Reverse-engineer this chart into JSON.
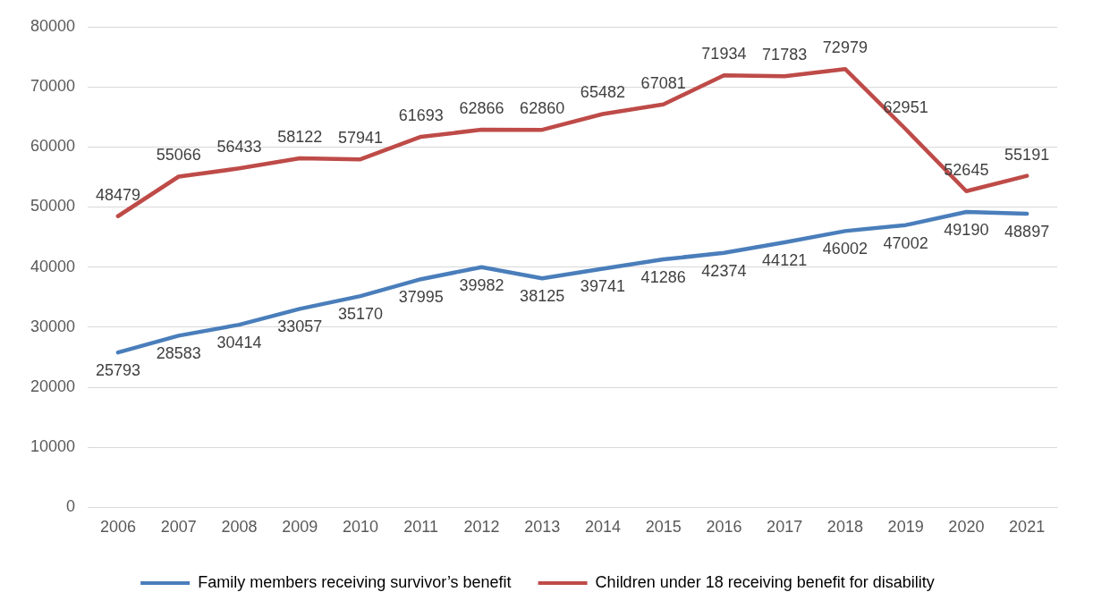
{
  "chart_data": {
    "type": "line",
    "categories": [
      "2006",
      "2007",
      "2008",
      "2009",
      "2010",
      "2011",
      "2012",
      "2013",
      "2014",
      "2015",
      "2016",
      "2017",
      "2018",
      "2019",
      "2020",
      "2021"
    ],
    "series": [
      {
        "name": "Family members receiving survivor’s benefit",
        "color": "#4a7ebb",
        "values": [
          25793,
          28583,
          30414,
          33057,
          35170,
          37995,
          39982,
          38125,
          39741,
          41286,
          42374,
          44121,
          46002,
          47002,
          49190,
          48897
        ]
      },
      {
        "name": "Children under 18 receiving benefit for disability",
        "color": "#be4b48",
        "values": [
          48479,
          55066,
          56433,
          58122,
          57941,
          61693,
          62866,
          62860,
          65482,
          67081,
          71934,
          71783,
          72979,
          62951,
          52645,
          55191
        ]
      }
    ],
    "ylim": [
      0,
      80000
    ],
    "yticks": [
      0,
      10000,
      20000,
      30000,
      40000,
      50000,
      60000,
      70000,
      80000
    ],
    "grid": "y",
    "legend": "bottom",
    "data_labels": true,
    "marker": "none",
    "line_style": "solid"
  }
}
